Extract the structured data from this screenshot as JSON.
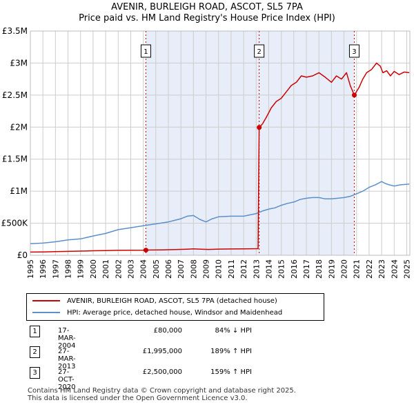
{
  "chart_data": {
    "type": "line",
    "title": "AVENIR, BURLEIGH ROAD, ASCOT, SL5 7PA",
    "subtitle": "Price paid vs. HM Land Registry's House Price Index (HPI)",
    "xlim": [
      1995.0,
      2025.25
    ],
    "ylim": [
      0,
      3500000
    ],
    "x_ticks": [
      1995,
      1996,
      1997,
      1998,
      1999,
      2000,
      2001,
      2002,
      2003,
      2004,
      2005,
      2006,
      2007,
      2008,
      2009,
      2010,
      2011,
      2012,
      2013,
      2014,
      2015,
      2016,
      2017,
      2018,
      2019,
      2020,
      2021,
      2022,
      2023,
      2024,
      2025
    ],
    "x_tick_labels": [
      "1995",
      "1996",
      "1997",
      "1998",
      "1999",
      "2000",
      "2001",
      "2002",
      "2003",
      "2004",
      "2005",
      "2006",
      "2007",
      "2008",
      "2009",
      "2010",
      "2011",
      "2012",
      "2013",
      "2014",
      "2015",
      "2016",
      "2017",
      "2018",
      "2019",
      "2020",
      "2021",
      "2022",
      "2023",
      "2024",
      "2025"
    ],
    "y_ticks": [
      0,
      500000,
      1000000,
      1500000,
      2000000,
      2500000,
      3000000,
      3500000
    ],
    "y_tick_labels": [
      "£0",
      "£500K",
      "£1M",
      "£1.5M",
      "£2M",
      "£2.5M",
      "£3M",
      "£3.5M"
    ],
    "grid": true,
    "shaded_region": [
      2004.21,
      2020.82
    ],
    "colors": {
      "property": "#cc0000",
      "hpi": "#5b8fc9",
      "shade": "#e8eef9",
      "grid": "#cccccc",
      "marker_line": "#cc0000"
    },
    "series": [
      {
        "name": "AVENIR, BURLEIGH ROAD, ASCOT, SL5 7PA (detached house)",
        "color": "#cc0000",
        "x": [
          1995.0,
          1996.0,
          1997.0,
          1998.0,
          1999.0,
          2000.0,
          2001.0,
          2002.0,
          2003.0,
          2004.2,
          2004.6,
          2005.5,
          2006.5,
          2007.5,
          2008.0,
          2008.6,
          2009.2,
          2010.0,
          2011.0,
          2012.0,
          2013.15,
          2013.24,
          2013.5,
          2013.8,
          2014.2,
          2014.6,
          2015.0,
          2015.4,
          2015.8,
          2016.2,
          2016.6,
          2017.0,
          2017.5,
          2018.0,
          2018.5,
          2019.0,
          2019.4,
          2019.8,
          2020.2,
          2020.5,
          2020.82,
          2021.2,
          2021.5,
          2021.8,
          2022.2,
          2022.6,
          2022.9,
          2023.1,
          2023.4,
          2023.7,
          2024.0,
          2024.4,
          2024.8,
          2025.2
        ],
        "values": [
          50000,
          52000,
          56000,
          60000,
          65000,
          70000,
          73000,
          76000,
          79000,
          80000,
          82000,
          84000,
          88000,
          95000,
          99000,
          94000,
          90000,
          96000,
          98000,
          100000,
          102000,
          1995000,
          2050000,
          2150000,
          2300000,
          2400000,
          2450000,
          2550000,
          2650000,
          2700000,
          2800000,
          2780000,
          2800000,
          2850000,
          2780000,
          2700000,
          2800000,
          2750000,
          2850000,
          2650000,
          2500000,
          2620000,
          2750000,
          2850000,
          2900000,
          3000000,
          2950000,
          2850000,
          2880000,
          2800000,
          2870000,
          2820000,
          2860000,
          2850000
        ]
      },
      {
        "name": "HPI: Average price, detached house, Windsor and Maidenhead",
        "color": "#5b8fc9",
        "x": [
          1995.0,
          1996.0,
          1997.0,
          1998.0,
          1999.0,
          2000.0,
          2001.0,
          2002.0,
          2003.0,
          2004.0,
          2005.0,
          2006.0,
          2007.0,
          2007.5,
          2008.0,
          2008.5,
          2009.0,
          2009.5,
          2010.0,
          2011.0,
          2012.0,
          2013.0,
          2013.5,
          2014.0,
          2014.5,
          2015.0,
          2015.5,
          2016.0,
          2016.5,
          2017.0,
          2017.5,
          2018.0,
          2018.5,
          2019.0,
          2019.5,
          2020.0,
          2020.5,
          2021.0,
          2021.5,
          2022.0,
          2022.5,
          2023.0,
          2023.3,
          2023.6,
          2024.0,
          2024.5,
          2025.2
        ],
        "values": [
          180000,
          190000,
          210000,
          240000,
          255000,
          300000,
          340000,
          400000,
          430000,
          460000,
          490000,
          520000,
          570000,
          610000,
          620000,
          560000,
          520000,
          570000,
          600000,
          610000,
          610000,
          650000,
          690000,
          720000,
          740000,
          780000,
          810000,
          830000,
          870000,
          890000,
          900000,
          900000,
          880000,
          880000,
          890000,
          900000,
          920000,
          960000,
          1000000,
          1060000,
          1100000,
          1150000,
          1120000,
          1100000,
          1080000,
          1100000,
          1110000
        ]
      }
    ],
    "sales": [
      {
        "label": "1",
        "date": "17-MAR-2004",
        "x": 2004.21,
        "price": 80000,
        "price_text": "£80,000",
        "hpi_text": "84% ↓ HPI"
      },
      {
        "label": "2",
        "date": "27-MAR-2013",
        "x": 2013.24,
        "price": 1995000,
        "price_text": "£1,995,000",
        "hpi_text": "189% ↑ HPI"
      },
      {
        "label": "3",
        "date": "27-OCT-2020",
        "x": 2020.82,
        "price": 2500000,
        "price_text": "£2,500,000",
        "hpi_text": "159% ↑ HPI"
      }
    ],
    "legend": [
      {
        "label": "AVENIR, BURLEIGH ROAD, ASCOT, SL5 7PA (detached house)",
        "color": "#cc0000"
      },
      {
        "label": "HPI: Average price, detached house, Windsor and Maidenhead",
        "color": "#5b8fc9"
      }
    ]
  },
  "footer": {
    "line1": "Contains HM Land Registry data © Crown copyright and database right 2025.",
    "line2": "This data is licensed under the Open Government Licence v3.0."
  }
}
